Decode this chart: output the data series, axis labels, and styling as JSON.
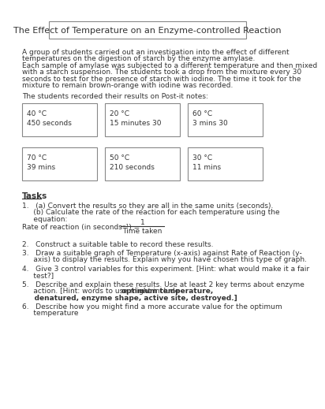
{
  "title": "The Effect of Temperature on an Enzyme-controlled Reaction",
  "intro_lines": [
    "A group of students carried out an investigation into the effect of different",
    "temperatures on the digestion of starch by the enzyme amylase.",
    "Each sample of amylase was subjected to a different temperature and then mixed",
    "with a starch suspension. The students took a drop from the mixture every 30",
    "seconds to test for the presence of starch with iodine. The time it took for the",
    "mixture to remain brown-orange with iodine was recorded."
  ],
  "post_it_label": "The students recorded their results on Post-it notes:",
  "post_its": [
    {
      "temp": "40 °C",
      "time": "450 seconds",
      "col": 0,
      "row": 0
    },
    {
      "temp": "20 °C",
      "time": "15 minutes 30",
      "col": 1,
      "row": 0
    },
    {
      "temp": "60 °C",
      "time": "3 mins 30",
      "col": 2,
      "row": 0
    },
    {
      "temp": "70 °C",
      "time": "39 mins",
      "col": 0,
      "row": 1
    },
    {
      "temp": "50 °C",
      "time": "210 seconds",
      "col": 1,
      "row": 1
    },
    {
      "temp": "30 °C",
      "time": "11 mins",
      "col": 2,
      "row": 1
    }
  ],
  "tasks_label": "Tasks",
  "rate_eq_label": "Rate of reaction (in seconds⁻¹) =",
  "rate_eq_num": "1",
  "rate_eq_den": "Time taken",
  "task2": "2.   Construct a suitable table to record these results.",
  "bg_color": "#ffffff",
  "border_color": "#888888",
  "text_color": "#333333",
  "font_size_title": 8,
  "font_size_body": 6.5
}
